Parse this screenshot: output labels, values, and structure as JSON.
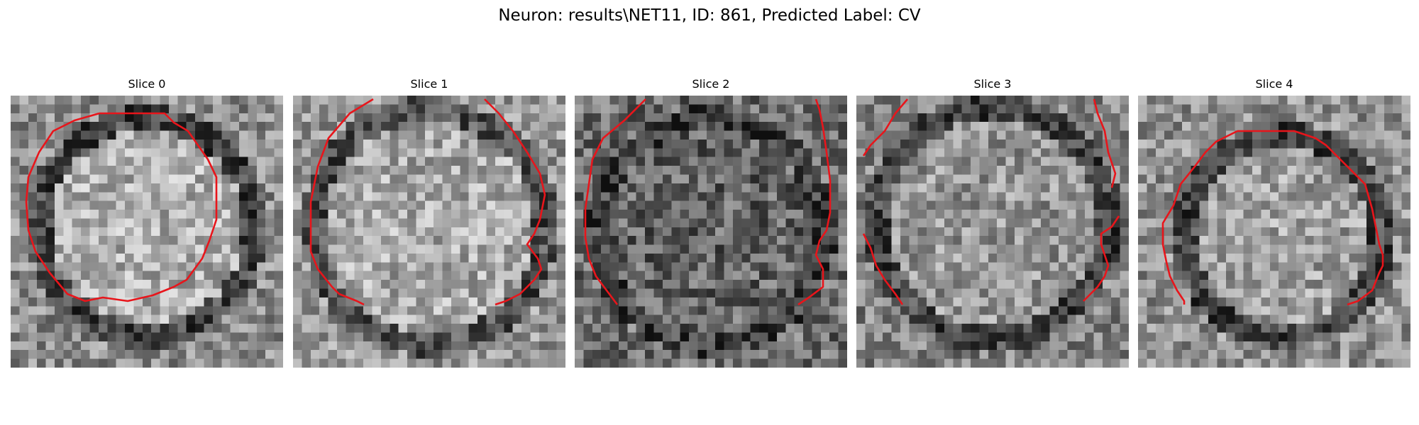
{
  "figure": {
    "title": "Neuron: results\\NET11, ID: 861, Predicted Label: CV"
  },
  "panels": [
    {
      "title": "Slice 0"
    },
    {
      "title": "Slice 1"
    },
    {
      "title": "Slice 2"
    },
    {
      "title": "Slice 3"
    },
    {
      "title": "Slice 4"
    }
  ],
  "colors": {
    "contour": "#e8151b",
    "colormap": "gray"
  }
}
